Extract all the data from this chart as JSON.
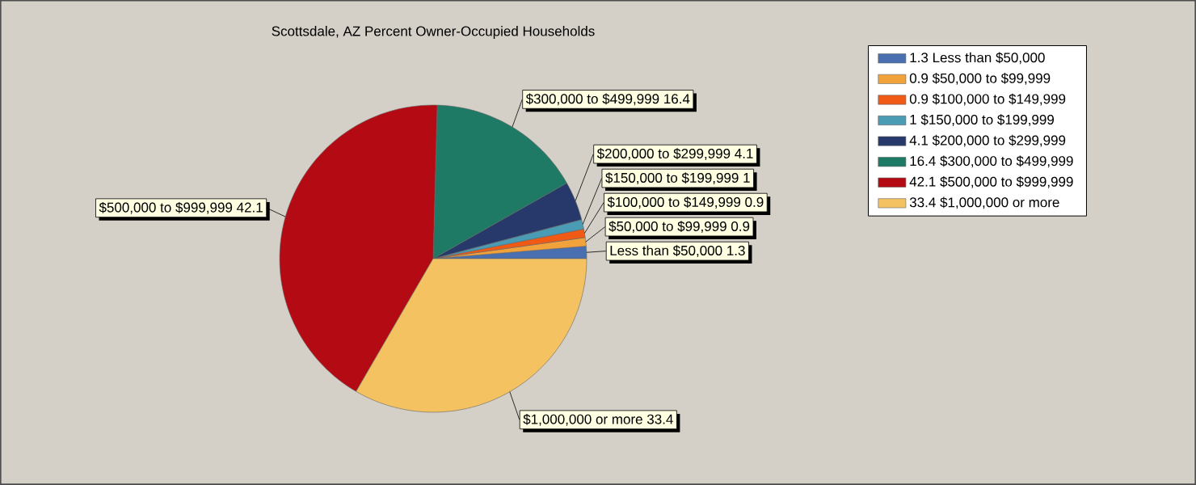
{
  "chart_data": {
    "type": "pie",
    "title": "Scottsdale, AZ Percent Owner-Occupied Households",
    "categories": [
      "Less than $50,000",
      "$50,000 to $99,999",
      "$100,000 to $149,999",
      "$150,000 to $199,999",
      "$200,000 to $299,999",
      "$300,000 to $499,999",
      "$500,000 to $999,999",
      "$1,000,000 or more"
    ],
    "values": [
      1.3,
      0.9,
      0.9,
      1,
      4.1,
      16.4,
      42.1,
      33.4
    ],
    "colors": [
      "#4a6fb0",
      "#f2a23a",
      "#f05a14",
      "#4a9bb4",
      "#27396b",
      "#1e7a64",
      "#b40a14",
      "#f5c262"
    ],
    "value_labels": [
      "1.3",
      "0.9",
      "0.9",
      "1",
      "4.1",
      "16.4",
      "42.1",
      "33.4"
    ],
    "legend": "top right"
  }
}
